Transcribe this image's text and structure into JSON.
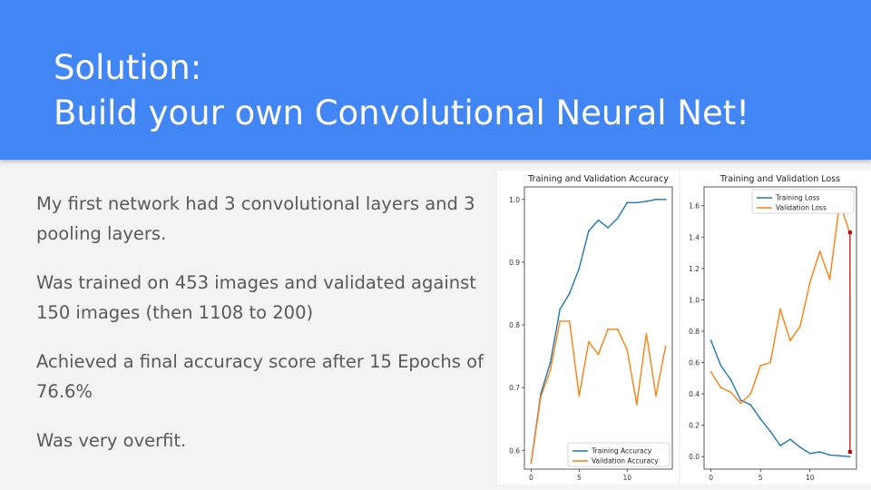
{
  "slide": {
    "title_line1": "Solution:",
    "title_line2": "Build your own Convolutional Neural Net!",
    "bullets": [
      "My first network had 3 convolutional layers and 3 pooling layers.",
      "Was trained on 453 images and validated against 150 images  (then 1108 to 200)",
      "Achieved a final accuracy score after 15 Epochs of 76.6%",
      "Was very overfit."
    ]
  },
  "colors": {
    "header": "#4285f4",
    "training": "#1f77b4",
    "validation": "#ff7f0e",
    "annotation": "#cc0000"
  },
  "chart_data": [
    {
      "type": "line",
      "title": "Training and Validation Accuracy",
      "xlabel": "",
      "ylabel": "",
      "x": [
        0,
        1,
        2,
        3,
        4,
        5,
        6,
        7,
        8,
        9,
        10,
        11,
        12,
        13,
        14
      ],
      "xticks": [
        0,
        5,
        10
      ],
      "yticks": [
        "0.6",
        "0.7",
        "0.8",
        "0.9",
        "1.0"
      ],
      "xlim": [
        -0.7,
        14.7
      ],
      "ylim": [
        0.57,
        1.02
      ],
      "legend": "lower-right",
      "series": [
        {
          "name": "Training Accuracy",
          "color": "#1f77b4",
          "values": [
            0.58,
            0.69,
            0.74,
            0.825,
            0.85,
            0.89,
            0.95,
            0.967,
            0.955,
            0.97,
            0.995,
            0.995,
            0.997,
            1.0,
            1.0
          ]
        },
        {
          "name": "Validation Accuracy",
          "color": "#ff7f0e",
          "values": [
            0.58,
            0.685,
            0.728,
            0.806,
            0.806,
            0.687,
            0.773,
            0.753,
            0.793,
            0.793,
            0.76,
            0.673,
            0.786,
            0.687,
            0.766
          ]
        }
      ]
    },
    {
      "type": "line",
      "title": "Training and Validation Loss",
      "xlabel": "",
      "ylabel": "",
      "x": [
        0,
        1,
        2,
        3,
        4,
        5,
        6,
        7,
        8,
        9,
        10,
        11,
        12,
        13,
        14
      ],
      "xticks": [
        0,
        5,
        10
      ],
      "yticks": [
        "0.0",
        "0.2",
        "0.4",
        "0.6",
        "0.8",
        "1.0",
        "1.2",
        "1.4",
        "1.6"
      ],
      "xlim": [
        -0.7,
        14.7
      ],
      "ylim": [
        -0.08,
        1.72
      ],
      "legend": "top-right",
      "annotation": {
        "type": "gap-arrow",
        "x": 14,
        "from": 0.03,
        "to": 1.43
      },
      "series": [
        {
          "name": "Training Loss",
          "color": "#1f77b4",
          "values": [
            0.74,
            0.58,
            0.49,
            0.36,
            0.33,
            0.24,
            0.16,
            0.07,
            0.11,
            0.06,
            0.02,
            0.03,
            0.01,
            0.005,
            0.0
          ]
        },
        {
          "name": "Validation Loss",
          "color": "#ff7f0e",
          "values": [
            0.54,
            0.44,
            0.41,
            0.34,
            0.4,
            0.58,
            0.6,
            0.94,
            0.74,
            0.83,
            1.11,
            1.31,
            1.13,
            1.62,
            1.43
          ]
        }
      ]
    }
  ]
}
